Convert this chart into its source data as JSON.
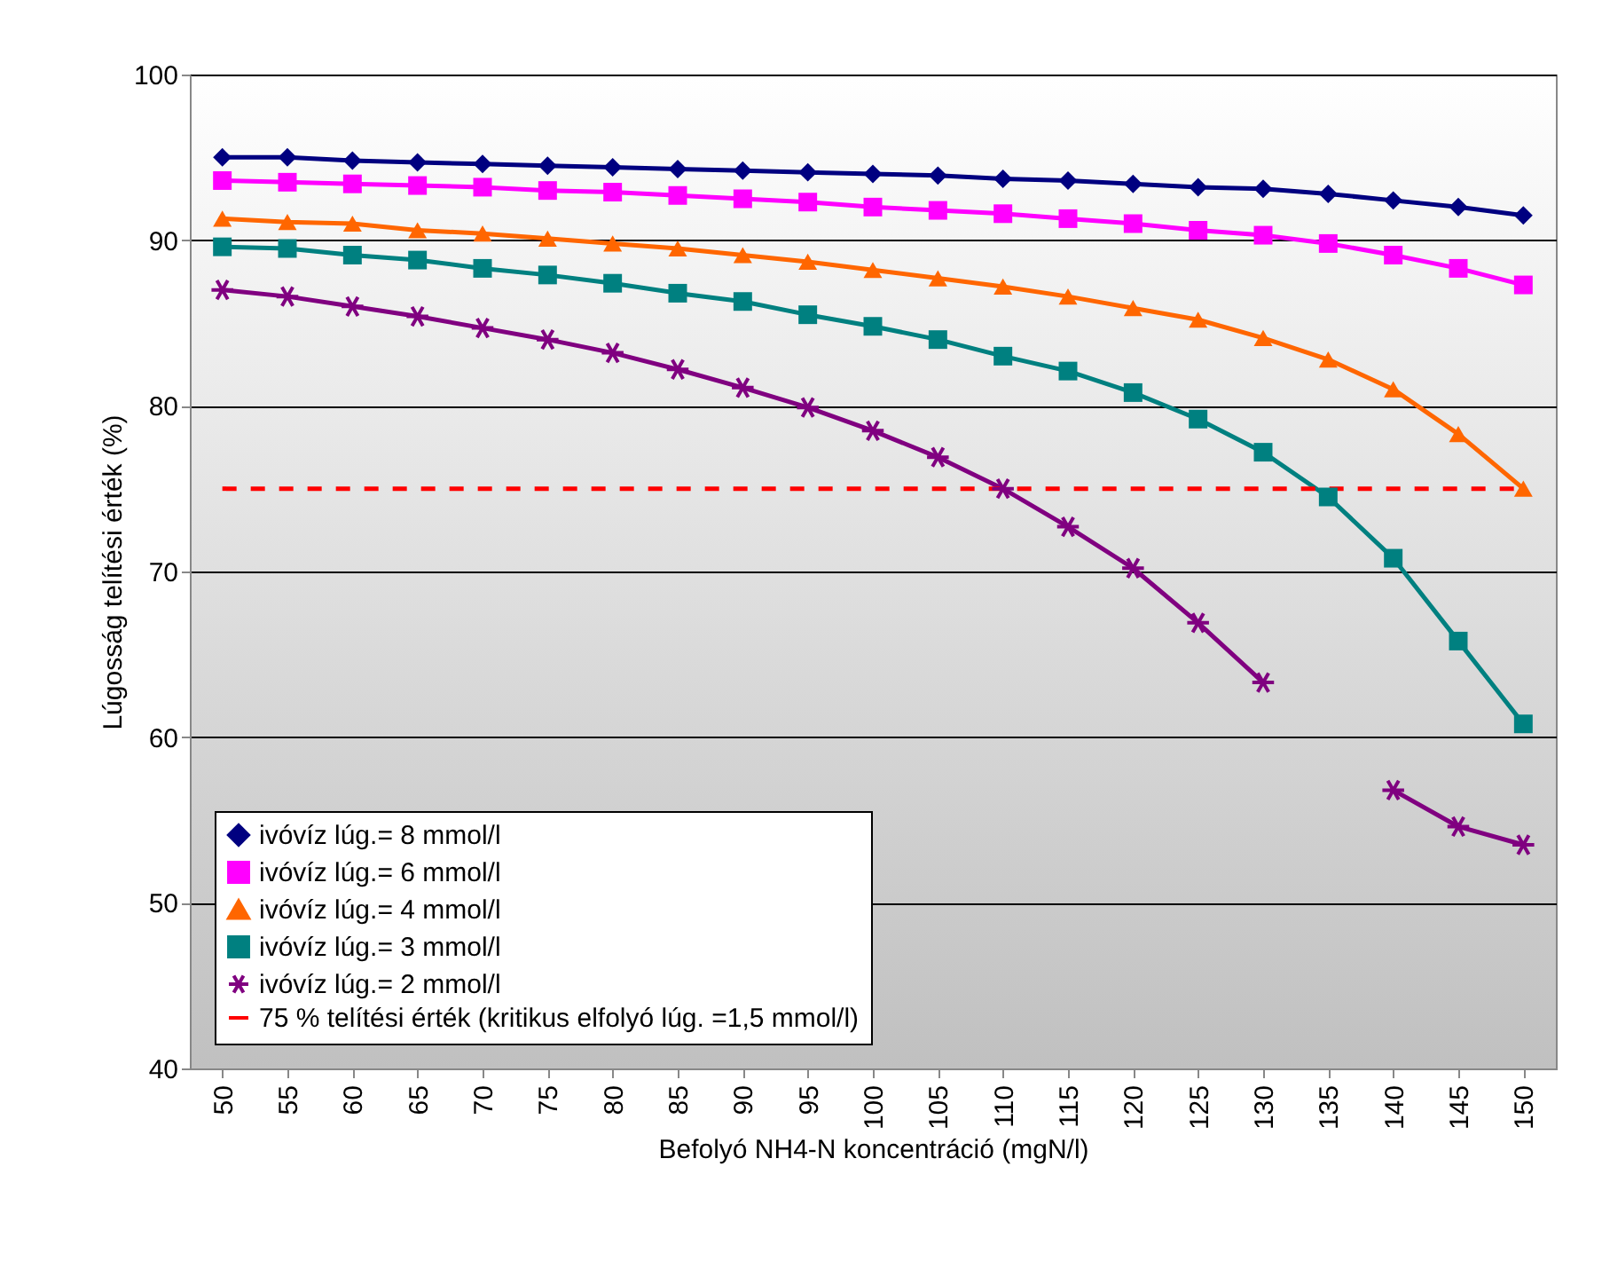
{
  "chart_data": {
    "type": "line",
    "xlabel": "Befolyó NH4-N koncentráció (mgN/l)",
    "ylabel": "Lúgosság telítési érték (%)",
    "categories": [
      "50",
      "55",
      "60",
      "65",
      "70",
      "75",
      "80",
      "85",
      "90",
      "95",
      "100",
      "105",
      "110",
      "115",
      "120",
      "125",
      "130",
      "135",
      "140",
      "145",
      "150"
    ],
    "ylim": [
      40,
      100
    ],
    "yticks": [
      40,
      50,
      60,
      70,
      80,
      90,
      100
    ],
    "grid": "y",
    "legend": "bottom left",
    "line_style": "solid",
    "series": [
      {
        "name": "ivóvíz lúg.= 8 mmol/l",
        "color": "#000080",
        "marker": "diamond",
        "values": [
          95.0,
          95.0,
          94.8,
          94.7,
          94.6,
          94.5,
          94.4,
          94.3,
          94.2,
          94.1,
          94.0,
          93.9,
          93.7,
          93.6,
          93.4,
          93.2,
          93.1,
          92.8,
          92.4,
          92.0,
          91.5
        ]
      },
      {
        "name": "ivóvíz lúg.= 6 mmol/l",
        "color": "#ff00ff",
        "marker": "square",
        "values": [
          93.6,
          93.5,
          93.4,
          93.3,
          93.2,
          93.0,
          92.9,
          92.7,
          92.5,
          92.3,
          92.0,
          91.8,
          91.6,
          91.3,
          91.0,
          90.6,
          90.3,
          89.8,
          89.1,
          88.3,
          87.3
        ]
      },
      {
        "name": "ivóvíz lúg.= 4 mmol/l",
        "color": "#ff6600",
        "marker": "triangle",
        "values": [
          91.3,
          91.1,
          91.0,
          90.6,
          90.4,
          90.1,
          89.8,
          89.5,
          89.1,
          88.7,
          88.2,
          87.7,
          87.2,
          86.6,
          85.9,
          85.2,
          84.1,
          82.8,
          81.0,
          78.3,
          75.0
        ]
      },
      {
        "name": "ivóvíz lúg.= 3 mmol/l",
        "color": "#008080",
        "marker": "square",
        "values": [
          89.6,
          89.5,
          89.1,
          88.8,
          88.3,
          87.9,
          87.4,
          86.8,
          86.3,
          85.5,
          84.8,
          84.0,
          83.0,
          82.1,
          80.8,
          79.2,
          77.2,
          74.5,
          70.8,
          65.8,
          60.8
        ]
      },
      {
        "name": "ivóvíz lúg.= 2 mmol/l",
        "color": "#800080",
        "marker": "cross",
        "values": [
          87.0,
          86.6,
          86.0,
          85.4,
          84.7,
          84.0,
          83.2,
          82.2,
          81.1,
          79.9,
          78.5,
          76.9,
          75.0,
          72.7,
          70.2,
          66.9,
          63.3,
          null,
          56.8,
          54.6,
          53.5
        ]
      }
    ],
    "ref_lines": [
      {
        "axis": "y",
        "value": 75,
        "label": "75 % telítési érték (kritikus elfolyó lúg. =1,5 mmol/l)",
        "color": "#ff0000",
        "line_style": "dashed"
      }
    ]
  }
}
